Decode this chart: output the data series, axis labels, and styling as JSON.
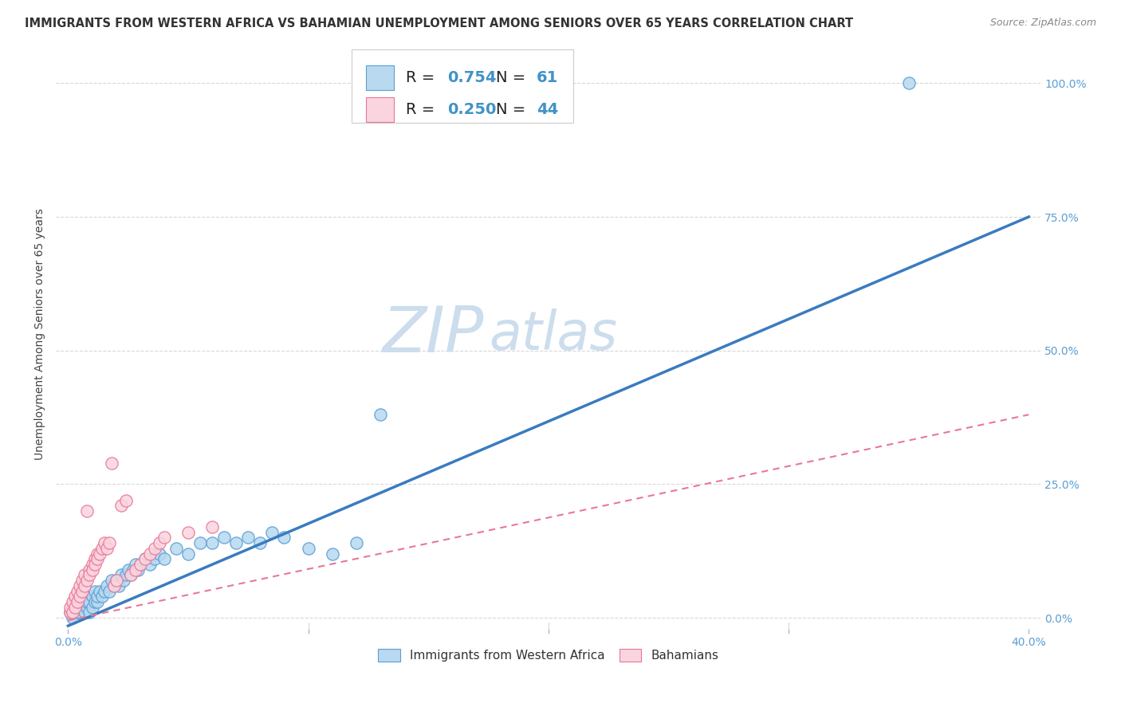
{
  "title": "IMMIGRANTS FROM WESTERN AFRICA VS BAHAMIAN UNEMPLOYMENT AMONG SENIORS OVER 65 YEARS CORRELATION CHART",
  "source": "Source: ZipAtlas.com",
  "ylabel": "Unemployment Among Seniors over 65 years",
  "xlim": [
    -0.005,
    0.405
  ],
  "ylim": [
    -0.02,
    1.08
  ],
  "xtick_labels": [
    "0.0%",
    "",
    "",
    "",
    "40.0%"
  ],
  "xtick_values": [
    0.0,
    0.1,
    0.2,
    0.3,
    0.4
  ],
  "ytick_labels": [
    "",
    "",
    "",
    "",
    ""
  ],
  "ytick_values": [
    0.0,
    0.25,
    0.5,
    0.75,
    1.0
  ],
  "right_ytick_labels": [
    "0.0%",
    "25.0%",
    "50.0%",
    "75.0%",
    "100.0%"
  ],
  "background_color": "#ffffff",
  "watermark_zip": "ZIP",
  "watermark_atlas": "atlas",
  "blue_color": "#90c4e8",
  "blue_fill_color": "#b8d9f0",
  "blue_edge_color": "#5b9fd4",
  "pink_color": "#f4b8c8",
  "pink_fill_color": "#fad4de",
  "pink_edge_color": "#e87898",
  "blue_line_color": "#3a7bbf",
  "pink_line_color": "#e87898",
  "legend_R_blue": "0.754",
  "legend_N_blue": "61",
  "legend_R_pink": "0.250",
  "legend_N_pink": "44",
  "label_blue": "Immigrants from Western Africa",
  "label_pink": "Bahamians",
  "blue_scatter_x": [
    0.001,
    0.002,
    0.002,
    0.003,
    0.003,
    0.004,
    0.004,
    0.005,
    0.005,
    0.006,
    0.006,
    0.007,
    0.007,
    0.008,
    0.008,
    0.009,
    0.009,
    0.01,
    0.01,
    0.011,
    0.011,
    0.012,
    0.012,
    0.013,
    0.014,
    0.015,
    0.016,
    0.017,
    0.018,
    0.019,
    0.02,
    0.021,
    0.022,
    0.023,
    0.024,
    0.025,
    0.026,
    0.027,
    0.028,
    0.029,
    0.03,
    0.032,
    0.034,
    0.036,
    0.038,
    0.04,
    0.045,
    0.05,
    0.055,
    0.06,
    0.065,
    0.07,
    0.075,
    0.08,
    0.085,
    0.09,
    0.1,
    0.11,
    0.12,
    0.13,
    0.35
  ],
  "blue_scatter_y": [
    0.01,
    0.02,
    0.0,
    0.01,
    0.03,
    0.01,
    0.02,
    0.02,
    0.01,
    0.03,
    0.02,
    0.01,
    0.04,
    0.02,
    0.03,
    0.01,
    0.03,
    0.02,
    0.04,
    0.03,
    0.05,
    0.03,
    0.04,
    0.05,
    0.04,
    0.05,
    0.06,
    0.05,
    0.07,
    0.06,
    0.07,
    0.06,
    0.08,
    0.07,
    0.08,
    0.09,
    0.08,
    0.09,
    0.1,
    0.09,
    0.1,
    0.11,
    0.1,
    0.11,
    0.12,
    0.11,
    0.13,
    0.12,
    0.14,
    0.14,
    0.15,
    0.14,
    0.15,
    0.14,
    0.16,
    0.15,
    0.13,
    0.12,
    0.14,
    0.38,
    1.0
  ],
  "pink_scatter_x": [
    0.001,
    0.001,
    0.002,
    0.002,
    0.003,
    0.003,
    0.004,
    0.004,
    0.005,
    0.005,
    0.006,
    0.006,
    0.007,
    0.007,
    0.008,
    0.008,
    0.009,
    0.009,
    0.01,
    0.01,
    0.011,
    0.011,
    0.012,
    0.012,
    0.013,
    0.014,
    0.015,
    0.016,
    0.017,
    0.018,
    0.019,
    0.02,
    0.022,
    0.024,
    0.026,
    0.028,
    0.03,
    0.032,
    0.034,
    0.036,
    0.038,
    0.04,
    0.05,
    0.06
  ],
  "pink_scatter_y": [
    0.01,
    0.02,
    0.01,
    0.03,
    0.02,
    0.04,
    0.03,
    0.05,
    0.04,
    0.06,
    0.05,
    0.07,
    0.06,
    0.08,
    0.07,
    0.2,
    0.09,
    0.08,
    0.1,
    0.09,
    0.11,
    0.1,
    0.12,
    0.11,
    0.12,
    0.13,
    0.14,
    0.13,
    0.14,
    0.29,
    0.06,
    0.07,
    0.21,
    0.22,
    0.08,
    0.09,
    0.1,
    0.11,
    0.12,
    0.13,
    0.14,
    0.15,
    0.16,
    0.17
  ],
  "blue_line_x": [
    0.0,
    0.4
  ],
  "blue_line_y": [
    -0.015,
    0.75
  ],
  "pink_line_x": [
    0.0,
    0.4
  ],
  "pink_line_y": [
    -0.005,
    0.38
  ],
  "title_fontsize": 10.5,
  "axis_label_fontsize": 10,
  "tick_fontsize": 10,
  "legend_fontsize": 14,
  "watermark_fontsize_zip": 58,
  "watermark_fontsize_atlas": 48,
  "watermark_color_zip": "#ccdded",
  "watermark_color_atlas": "#ccdded",
  "tick_color": "#5b9fd4",
  "grid_color": "#d8d8d8"
}
